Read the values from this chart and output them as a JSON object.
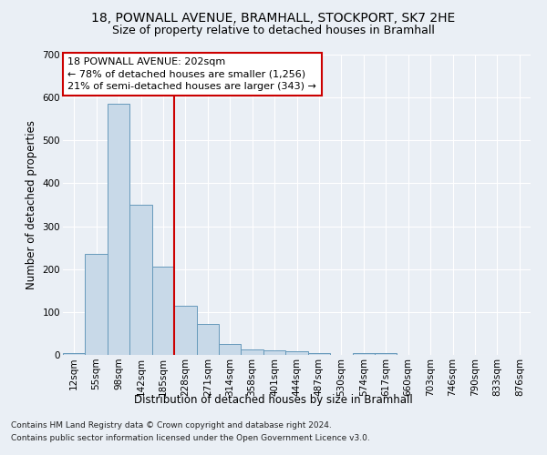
{
  "title1": "18, POWNALL AVENUE, BRAMHALL, STOCKPORT, SK7 2HE",
  "title2": "Size of property relative to detached houses in Bramhall",
  "xlabel": "Distribution of detached houses by size in Bramhall",
  "ylabel": "Number of detached properties",
  "categories": [
    "12sqm",
    "55sqm",
    "98sqm",
    "142sqm",
    "185sqm",
    "228sqm",
    "271sqm",
    "314sqm",
    "358sqm",
    "401sqm",
    "444sqm",
    "487sqm",
    "530sqm",
    "574sqm",
    "617sqm",
    "660sqm",
    "703sqm",
    "746sqm",
    "790sqm",
    "833sqm",
    "876sqm"
  ],
  "values": [
    5,
    235,
    585,
    350,
    205,
    115,
    72,
    25,
    13,
    10,
    8,
    5,
    0,
    5,
    5,
    0,
    0,
    0,
    0,
    0,
    0
  ],
  "bar_color": "#c8d9e8",
  "bar_edge_color": "#6699bb",
  "vline_x": 4.5,
  "vline_color": "#cc0000",
  "annotation_text": "18 POWNALL AVENUE: 202sqm\n← 78% of detached houses are smaller (1,256)\n21% of semi-detached houses are larger (343) →",
  "annotation_box_color": "#ffffff",
  "annotation_box_edge": "#cc0000",
  "footnote1": "Contains HM Land Registry data © Crown copyright and database right 2024.",
  "footnote2": "Contains public sector information licensed under the Open Government Licence v3.0.",
  "ylim": [
    0,
    700
  ],
  "yticks": [
    0,
    100,
    200,
    300,
    400,
    500,
    600,
    700
  ],
  "bg_color": "#eaeff5",
  "plot_bg_color": "#eaeff5",
  "grid_color": "#ffffff",
  "title1_fontsize": 10,
  "title2_fontsize": 9,
  "tick_fontsize": 7.5,
  "label_fontsize": 8.5,
  "annot_fontsize": 8,
  "footnote_fontsize": 6.5
}
